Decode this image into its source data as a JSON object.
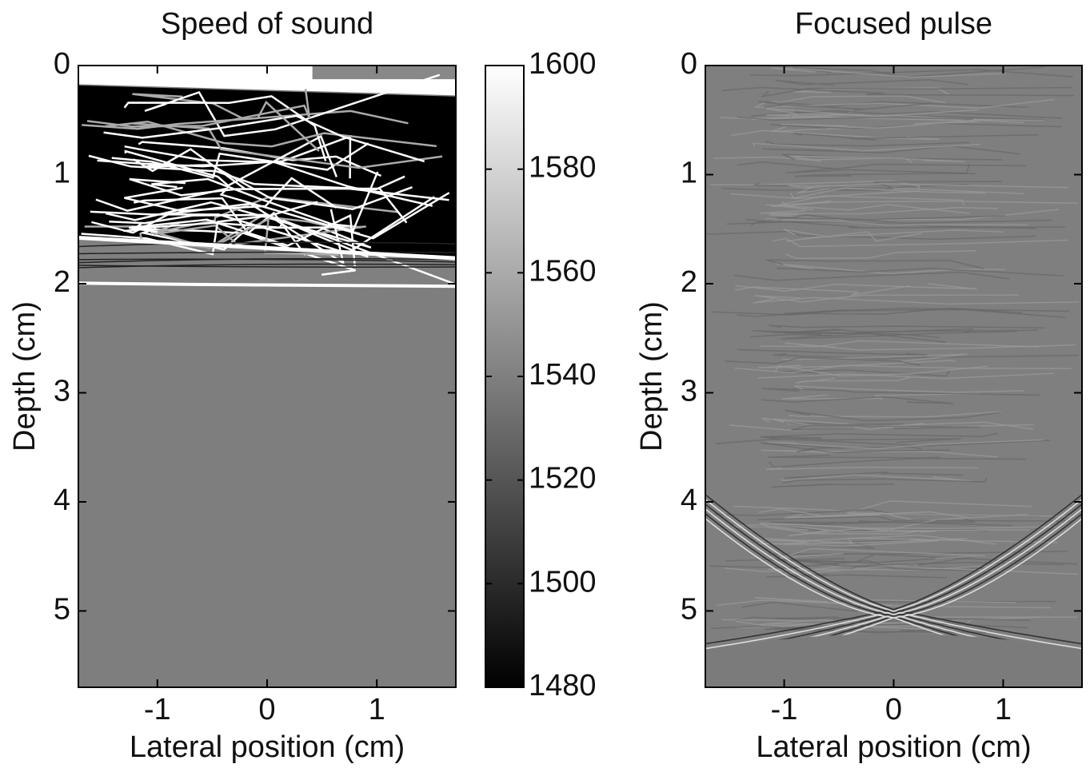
{
  "chart_data": [
    {
      "type": "image",
      "title": "Speed of sound",
      "xlabel": "Lateral position (cm)",
      "ylabel": "Depth (cm)",
      "xlim": [
        -1.72,
        1.72
      ],
      "ylim": [
        0,
        5.7
      ],
      "y_reversed": true,
      "xticks": [
        -1,
        0,
        1
      ],
      "yticks": [
        0,
        1,
        2,
        3,
        4,
        5
      ],
      "colormap": "gray",
      "colorbar": {
        "lim": [
          1480,
          1600
        ],
        "ticks": [
          1480,
          1500,
          1520,
          1540,
          1560,
          1580,
          1600
        ]
      }
    },
    {
      "type": "image",
      "title": "Focused pulse",
      "xlabel": "Lateral position (cm)",
      "ylabel": "Depth (cm)",
      "xlim": [
        -1.72,
        1.72
      ],
      "ylim": [
        0,
        5.7
      ],
      "y_reversed": true,
      "xticks": [
        -1,
        0,
        1
      ],
      "yticks": [
        0,
        1,
        2,
        3,
        4,
        5
      ],
      "colormap": "gray"
    }
  ]
}
